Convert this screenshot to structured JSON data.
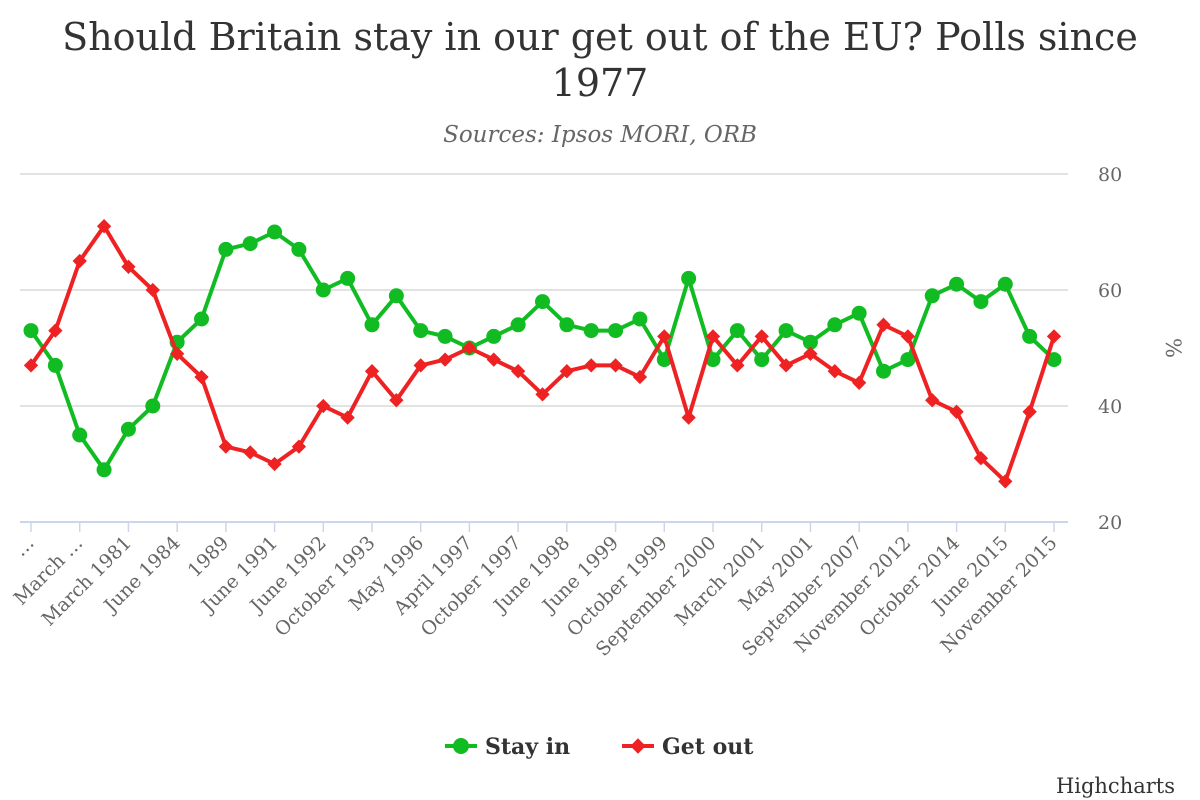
{
  "chart_data": {
    "type": "line",
    "title": "Should Britain stay in our get out of the EU? Polls since 1977",
    "subtitle": "Sources: Ipsos MORI, ORB",
    "ylabel": "%",
    "ylim": [
      20,
      80
    ],
    "y_ticks": [
      20,
      40,
      60,
      80
    ],
    "grid": true,
    "legend_position": "bottom-center",
    "credits": "Highcharts",
    "categories": [
      "…",
      "",
      "March …",
      "",
      "March 1981",
      "",
      "June 1984",
      "",
      "1989",
      "",
      "June 1991",
      "",
      "June 1992",
      "",
      "October 1993",
      "",
      "May 1996",
      "",
      "April 1997",
      "",
      "October 1997",
      "",
      "June 1998",
      "",
      "June 1999",
      "",
      "October 1999",
      "",
      "September 2000",
      "",
      "March 2001",
      "",
      "May 2001",
      "",
      "September 2007",
      "",
      "November 2012",
      "",
      "October 2014",
      "",
      "June 2015",
      "",
      "November 2015"
    ],
    "series": [
      {
        "name": "Stay in",
        "color": "#11bb22",
        "marker": "circle",
        "values": [
          53,
          47,
          35,
          29,
          36,
          40,
          51,
          55,
          67,
          68,
          70,
          67,
          60,
          62,
          54,
          59,
          53,
          52,
          50,
          52,
          54,
          58,
          54,
          53,
          53,
          55,
          48,
          62,
          48,
          53,
          48,
          53,
          51,
          54,
          56,
          46,
          48,
          59,
          61,
          58,
          61,
          52,
          48
        ]
      },
      {
        "name": "Get out",
        "color": "#ee2222",
        "marker": "diamond",
        "values": [
          47,
          53,
          65,
          71,
          64,
          60,
          49,
          45,
          33,
          32,
          30,
          33,
          40,
          38,
          46,
          41,
          47,
          48,
          50,
          48,
          46,
          42,
          46,
          47,
          47,
          45,
          52,
          38,
          52,
          47,
          52,
          47,
          49,
          46,
          44,
          54,
          52,
          41,
          39,
          31,
          27,
          39,
          52
        ]
      }
    ]
  }
}
